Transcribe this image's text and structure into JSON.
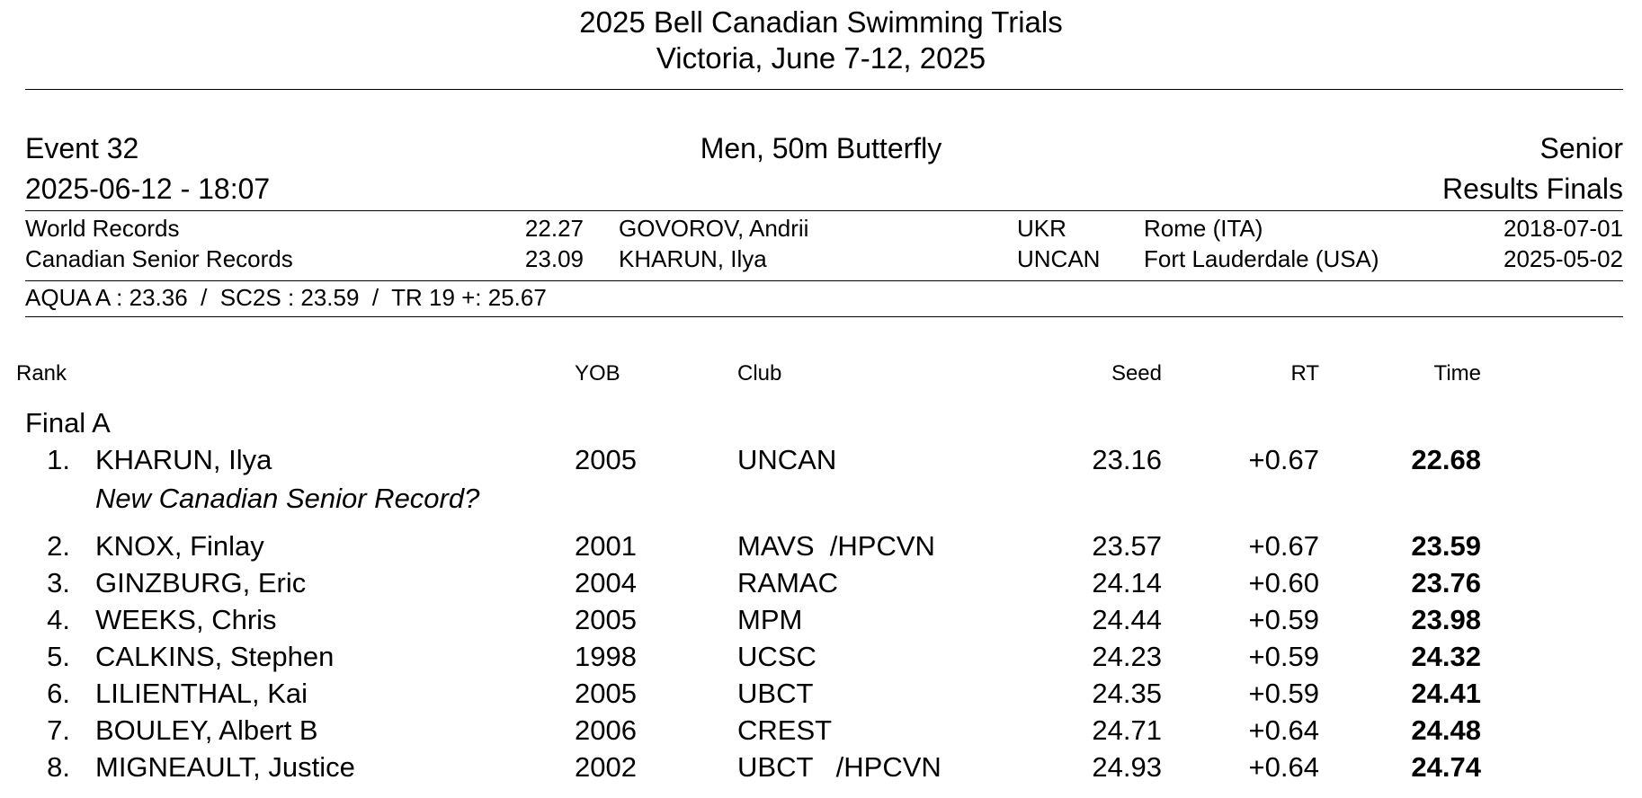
{
  "meet": {
    "title": "2025 Bell Canadian Swimming Trials",
    "location_dates": "Victoria, June 7-12, 2025"
  },
  "event": {
    "number": "Event 32",
    "name": "Men, 50m Butterfly",
    "category": "Senior",
    "datetime": "2025-06-12 - 18:07",
    "stage": "Results Finals"
  },
  "records": [
    {
      "label": "World Records",
      "time": "22.27",
      "holder": "GOVOROV, Andrii",
      "club": "UKR",
      "place": "Rome (ITA)",
      "date": "2018-07-01"
    },
    {
      "label": "Canadian Senior Records",
      "time": "23.09",
      "holder": "KHARUN, Ilya",
      "club": "UNCAN",
      "place": "Fort Lauderdale (USA)",
      "date": "2025-05-02"
    }
  ],
  "standards": "AQUA A : 23.36  /  SC2S : 23.59  /  TR 19 +: 25.67",
  "columns": {
    "rank": "Rank",
    "yob": "YOB",
    "club": "Club",
    "seed": "Seed",
    "rt": "RT",
    "time": "Time"
  },
  "final_label": "Final A",
  "results": [
    {
      "rank": "1.",
      "name": "KHARUN, Ilya",
      "yob": "2005",
      "club": "UNCAN",
      "seed": "23.16",
      "rt": "+0.67",
      "time": "22.68",
      "note": "New Canadian Senior Record?"
    },
    {
      "rank": "2.",
      "name": "KNOX, Finlay",
      "yob": "2001",
      "club": "MAVS  /HPCVN",
      "seed": "23.57",
      "rt": "+0.67",
      "time": "23.59"
    },
    {
      "rank": "3.",
      "name": "GINZBURG, Eric",
      "yob": "2004",
      "club": "RAMAC",
      "seed": "24.14",
      "rt": "+0.60",
      "time": "23.76"
    },
    {
      "rank": "4.",
      "name": "WEEKS, Chris",
      "yob": "2005",
      "club": "MPM",
      "seed": "24.44",
      "rt": "+0.59",
      "time": "23.98"
    },
    {
      "rank": "5.",
      "name": "CALKINS, Stephen",
      "yob": "1998",
      "club": "UCSC",
      "seed": "24.23",
      "rt": "+0.59",
      "time": "24.32"
    },
    {
      "rank": "6.",
      "name": "LILIENTHAL, Kai",
      "yob": "2005",
      "club": "UBCT",
      "seed": "24.35",
      "rt": "+0.59",
      "time": "24.41"
    },
    {
      "rank": "7.",
      "name": "BOULEY, Albert B",
      "yob": "2006",
      "club": "CREST",
      "seed": "24.71",
      "rt": "+0.64",
      "time": "24.48"
    },
    {
      "rank": "8.",
      "name": "MIGNEAULT, Justice",
      "yob": "2002",
      "club": "UBCT   /HPCVN",
      "seed": "24.93",
      "rt": "+0.64",
      "time": "24.74"
    }
  ]
}
